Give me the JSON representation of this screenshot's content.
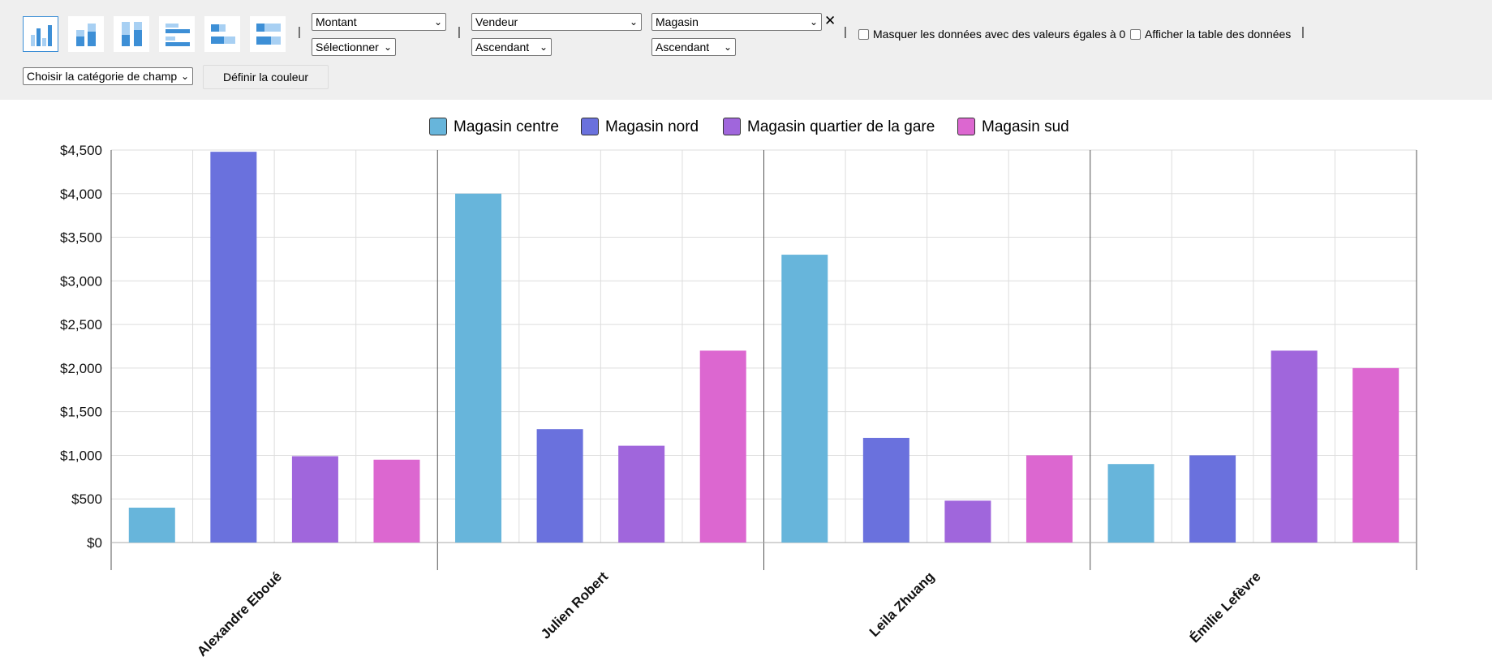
{
  "toolbar": {
    "chart_types": [
      {
        "name": "grouped-bar-chart",
        "active": true
      },
      {
        "name": "stacked-bar-chart",
        "active": false
      },
      {
        "name": "stacked-100-bar-chart",
        "active": false
      },
      {
        "name": "horizontal-bar-chart",
        "active": false
      },
      {
        "name": "horizontal-stacked-bar-chart",
        "active": false
      },
      {
        "name": "horizontal-stacked-100-bar-chart",
        "active": false
      }
    ],
    "separator": "|",
    "value_field": "Montant",
    "aggregation": "Sélectionner",
    "row_field": "Vendeur",
    "row_sort": "Ascendant",
    "column_field": "Magasin",
    "column_sort": "Ascendant",
    "remove_icon": "✕",
    "hide_zero_label": "Masquer les données avec des valeurs égales à 0",
    "hide_zero_checked": false,
    "show_table_label": "Afficher la table des données",
    "show_table_checked": false,
    "category_select": "Choisir la catégorie de champ",
    "color_button": "Définir la couleur",
    "chevron": "⌄"
  },
  "chart_data": {
    "type": "bar",
    "categories": [
      "Alexandre Eboué",
      "Julien Robert",
      "Leila Zhuang",
      "Émilie Lefèvre"
    ],
    "series": [
      {
        "name": "Magasin centre",
        "color": "#67b5db",
        "values": [
          400,
          4000,
          3300,
          900
        ]
      },
      {
        "name": "Magasin nord",
        "color": "#6a71dd",
        "values": [
          4480,
          1300,
          1200,
          1000
        ]
      },
      {
        "name": "Magasin quartier de la gare",
        "color": "#a066dc",
        "values": [
          990,
          1110,
          480,
          2200
        ]
      },
      {
        "name": "Magasin sud",
        "color": "#dc67d0",
        "values": [
          950,
          2200,
          1000,
          2000
        ]
      }
    ],
    "yticks": [
      "$0",
      "$500",
      "$1,000",
      "$1,500",
      "$2,000",
      "$2,500",
      "$3,000",
      "$3,500",
      "$4,000",
      "$4,500"
    ],
    "ylim": [
      0,
      4500
    ],
    "grid": true,
    "legend_position": "top"
  }
}
